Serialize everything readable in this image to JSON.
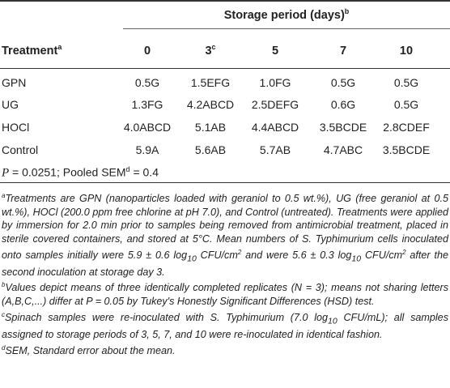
{
  "table": {
    "period_title": "Storage period (days)",
    "period_title_sup": "b",
    "treatment_header": "Treatment",
    "treatment_header_sup": "a",
    "columns": [
      {
        "label": "0",
        "sup": ""
      },
      {
        "label": "3",
        "sup": "c"
      },
      {
        "label": "5",
        "sup": ""
      },
      {
        "label": "7",
        "sup": ""
      },
      {
        "label": "10",
        "sup": ""
      }
    ],
    "rows": [
      {
        "treatment": "GPN",
        "values": [
          "0.5G",
          "1.5EFG",
          "1.0FG",
          "0.5G",
          "0.5G"
        ]
      },
      {
        "treatment": "UG",
        "values": [
          "1.3FG",
          "4.2ABCD",
          "2.5DEFG",
          "0.6G",
          "0.5G"
        ]
      },
      {
        "treatment": "HOCl",
        "values": [
          "4.0ABCD",
          "5.1AB",
          "4.4ABCD",
          "3.5BCDE",
          "2.8CDEF"
        ]
      },
      {
        "treatment": "Control",
        "values": [
          "5.9A",
          "5.6AB",
          "5.7AB",
          "4.7ABC",
          "3.5BCDE"
        ]
      }
    ],
    "p_label": "P",
    "p_value": " = 0.0251; Pooled SEM",
    "p_sup": "d",
    "p_tail": " = 0.4"
  },
  "footnotes": {
    "a_mark": "a",
    "a_text": "Treatments are GPN (nanoparticles loaded with geraniol to 0.5 wt.%), UG (free geraniol at 0.5 wt.%), HOCl (200.0 ppm free chlorine at pH 7.0), and Control (untreated). Treatments were applied by immersion for 2.0 min prior to samples being removed from antimicrobial treatment, placed in sterile covered containers, and stored at 5°C. Mean numbers of S. Typhimurium cells inoculated onto samples initially were 5.9 ± 0.6 log",
    "a_sub1": "10",
    "a_text2": " CFU/cm",
    "a_sup1": "2",
    "a_text3": " and were 5.6 ± 0.3 log",
    "a_sub2": "10",
    "a_text4": " CFU/cm",
    "a_sup2": "2",
    "a_text5": " after the second inoculation at storage day 3.",
    "b_mark": "b",
    "b_text": "Values depict means of three identically completed replicates (N = 3); means not sharing letters (A,B,C,...) differ at P = 0.05 by Tukey's Honestly Significant Differences (HSD) test.",
    "c_mark": "c",
    "c_text": "Spinach samples were re-inoculated with S. Typhimurium (7.0 log",
    "c_sub": "10",
    "c_text2": " CFU/mL); all samples assigned to storage periods of 3, 5, 7, and 10 were re-inoculated in identical fashion.",
    "d_mark": "d",
    "d_text": "SEM, Standard error about the mean."
  }
}
